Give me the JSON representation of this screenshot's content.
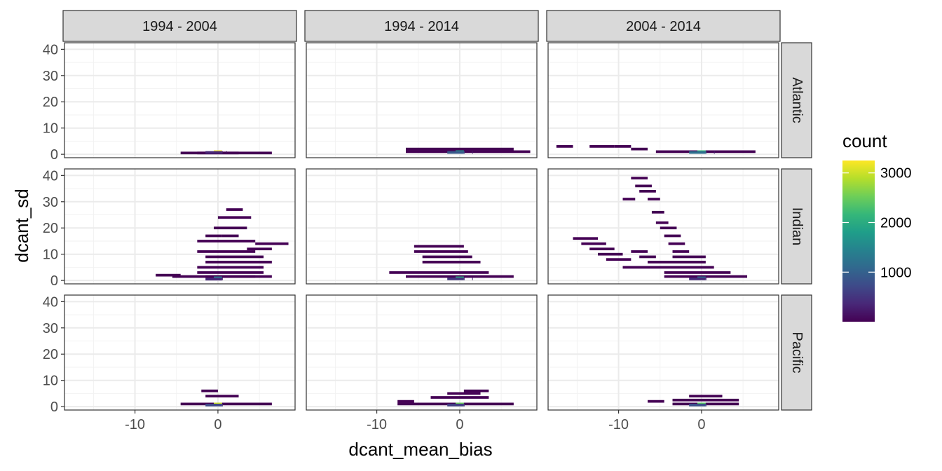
{
  "chart_data": {
    "type": "heatmap",
    "title": "",
    "xlabel": "dcant_mean_bias",
    "ylabel": "dcant_sd",
    "xlim": [
      -18.5,
      9.3
    ],
    "ylim": [
      -1.3,
      42.5
    ],
    "x_ticks": [
      -10,
      0
    ],
    "x_tick_labels": [
      "-10",
      "0"
    ],
    "y_ticks": [
      0,
      10,
      20,
      30,
      40
    ],
    "y_tick_labels": [
      "0",
      "10",
      "20",
      "30",
      "40"
    ],
    "grid": true,
    "bin_width_x": 1.0,
    "bin_width_y": 1.0,
    "columns": [
      "1994 - 2004",
      "1994 - 2014",
      "2004 - 2014"
    ],
    "rows": [
      "Atlantic",
      "Indian",
      "Pacific"
    ],
    "legend": {
      "title": "count",
      "position": "right",
      "min": 1,
      "max": 3250,
      "ticks": [
        1000,
        2000,
        3000
      ],
      "tick_labels": [
        "1000",
        "2000",
        "3000"
      ],
      "colormap": [
        "#440154",
        "#482878",
        "#3e4a89",
        "#31688e",
        "#26828e",
        "#1f9e89",
        "#35b779",
        "#6ece58",
        "#b5de2b",
        "#fde725"
      ]
    },
    "panels": [
      {
        "col": 0,
        "row": 0,
        "segments": [
          [
            -4,
            2,
            0.5,
            2
          ],
          [
            -2,
            6,
            0.5,
            1
          ],
          [
            0,
            0,
            1,
            3200
          ],
          [
            -1,
            0,
            0.7,
            350
          ],
          [
            1,
            0,
            0.7,
            250
          ],
          [
            1.5,
            0,
            0.7,
            120
          ]
        ]
      },
      {
        "col": 0,
        "row": 1,
        "segments": [
          [
            1.5,
            2.5,
            27,
            2
          ],
          [
            0.5,
            3.5,
            24,
            2
          ],
          [
            0,
            3,
            20,
            2
          ],
          [
            -1,
            0,
            17,
            2
          ],
          [
            1,
            2,
            17,
            2
          ],
          [
            -2,
            4,
            15,
            2
          ],
          [
            5,
            8,
            14,
            2
          ],
          [
            4,
            6,
            12,
            2
          ],
          [
            -2,
            4,
            11,
            2
          ],
          [
            -1,
            5,
            9,
            2
          ],
          [
            -1,
            6,
            7,
            2
          ],
          [
            -2,
            5,
            5,
            2
          ],
          [
            -7,
            -5,
            2,
            2
          ],
          [
            -5,
            6,
            1.5,
            2
          ],
          [
            -2,
            5,
            3,
            2
          ],
          [
            -1,
            4,
            1.5,
            2
          ],
          [
            0,
            0,
            1,
            1300
          ],
          [
            -1,
            0,
            0.5,
            350
          ],
          [
            1,
            0,
            0.6,
            300
          ]
        ]
      },
      {
        "col": 0,
        "row": 2,
        "segments": [
          [
            -1.5,
            -0.5,
            6,
            2
          ],
          [
            -1,
            2,
            4,
            2
          ],
          [
            -4,
            6,
            1,
            2
          ],
          [
            0,
            0,
            1,
            3000
          ],
          [
            -1,
            0,
            0.6,
            700
          ],
          [
            1,
            0,
            0.6,
            500
          ]
        ]
      },
      {
        "col": 1,
        "row": 0,
        "segments": [
          [
            -6,
            6,
            2,
            2
          ],
          [
            -6,
            8,
            1,
            2
          ],
          [
            0,
            0,
            1,
            1800
          ],
          [
            -1,
            0,
            0.7,
            900
          ],
          [
            1,
            0,
            0.7,
            700
          ],
          [
            2,
            0,
            0.7,
            250
          ]
        ]
      },
      {
        "col": 1,
        "row": 1,
        "segments": [
          [
            -5,
            0,
            13,
            2
          ],
          [
            -5,
            0.5,
            11,
            2
          ],
          [
            -4,
            1,
            9,
            2
          ],
          [
            -4,
            2,
            7,
            2
          ],
          [
            -8,
            3,
            3,
            2
          ],
          [
            -6,
            6,
            1.5,
            2
          ],
          [
            0,
            0,
            1,
            2000
          ],
          [
            -1,
            0,
            0.6,
            500
          ],
          [
            1,
            0,
            0.6,
            400
          ],
          [
            2,
            0,
            0.6,
            250
          ]
        ]
      },
      {
        "col": 1,
        "row": 2,
        "segments": [
          [
            1,
            3,
            6,
            2
          ],
          [
            -1,
            2,
            5,
            2
          ],
          [
            -3,
            3,
            3.5,
            2
          ],
          [
            -7,
            -6,
            2,
            2
          ],
          [
            -7,
            6,
            1,
            2
          ],
          [
            0,
            0,
            1,
            2500
          ],
          [
            -1,
            0,
            0.6,
            600
          ],
          [
            1,
            0,
            0.6,
            500
          ]
        ]
      },
      {
        "col": 2,
        "row": 0,
        "segments": [
          [
            -17,
            -16,
            3,
            2
          ],
          [
            -13,
            -11,
            3,
            2
          ],
          [
            -10,
            -9,
            3,
            2
          ],
          [
            -8,
            -7,
            2,
            2
          ],
          [
            -5,
            6,
            1,
            2
          ],
          [
            0,
            0,
            1,
            2200
          ],
          [
            -1,
            0,
            0.7,
            1200
          ],
          [
            1,
            0,
            0.7,
            900
          ],
          [
            2,
            0,
            0.7,
            300
          ]
        ]
      },
      {
        "col": 2,
        "row": 1,
        "segments": [
          [
            -8,
            -7,
            39,
            2
          ],
          [
            -7.5,
            -6.5,
            36,
            2
          ],
          [
            -7,
            -6,
            34,
            2
          ],
          [
            -9,
            -8.5,
            31,
            2
          ],
          [
            -6,
            -5.5,
            31,
            2
          ],
          [
            -5.5,
            -5,
            26,
            2
          ],
          [
            -5,
            -4.5,
            22,
            2
          ],
          [
            -4.5,
            -3.5,
            20,
            2
          ],
          [
            -4,
            -3,
            17,
            2
          ],
          [
            -3.5,
            -2.5,
            14,
            2
          ],
          [
            -15,
            -13,
            16,
            2
          ],
          [
            -14,
            -12,
            14,
            2
          ],
          [
            -13,
            -11,
            12,
            2
          ],
          [
            -12,
            -10,
            10,
            2
          ],
          [
            -11,
            -9,
            8,
            2
          ],
          [
            -8,
            -7,
            11,
            2
          ],
          [
            -7,
            -6,
            9,
            2
          ],
          [
            -3,
            -2,
            11,
            2
          ],
          [
            -3,
            0,
            9,
            2
          ],
          [
            -6,
            0,
            7,
            2
          ],
          [
            -9,
            1,
            5,
            2
          ],
          [
            -4,
            3,
            3,
            2
          ],
          [
            -4,
            5,
            1.5,
            2
          ],
          [
            0,
            0,
            1,
            1200
          ],
          [
            -1,
            0,
            0.6,
            400
          ],
          [
            1,
            0,
            0.6,
            350
          ]
        ]
      },
      {
        "col": 2,
        "row": 2,
        "segments": [
          [
            -6,
            -5,
            2,
            2
          ],
          [
            -1,
            2,
            4,
            2
          ],
          [
            -3,
            4,
            2.5,
            2
          ],
          [
            -3,
            4,
            1,
            2
          ],
          [
            0,
            0,
            1,
            2400
          ],
          [
            -1,
            0,
            0.6,
            800
          ],
          [
            1,
            0,
            0.6,
            600
          ]
        ]
      }
    ]
  }
}
